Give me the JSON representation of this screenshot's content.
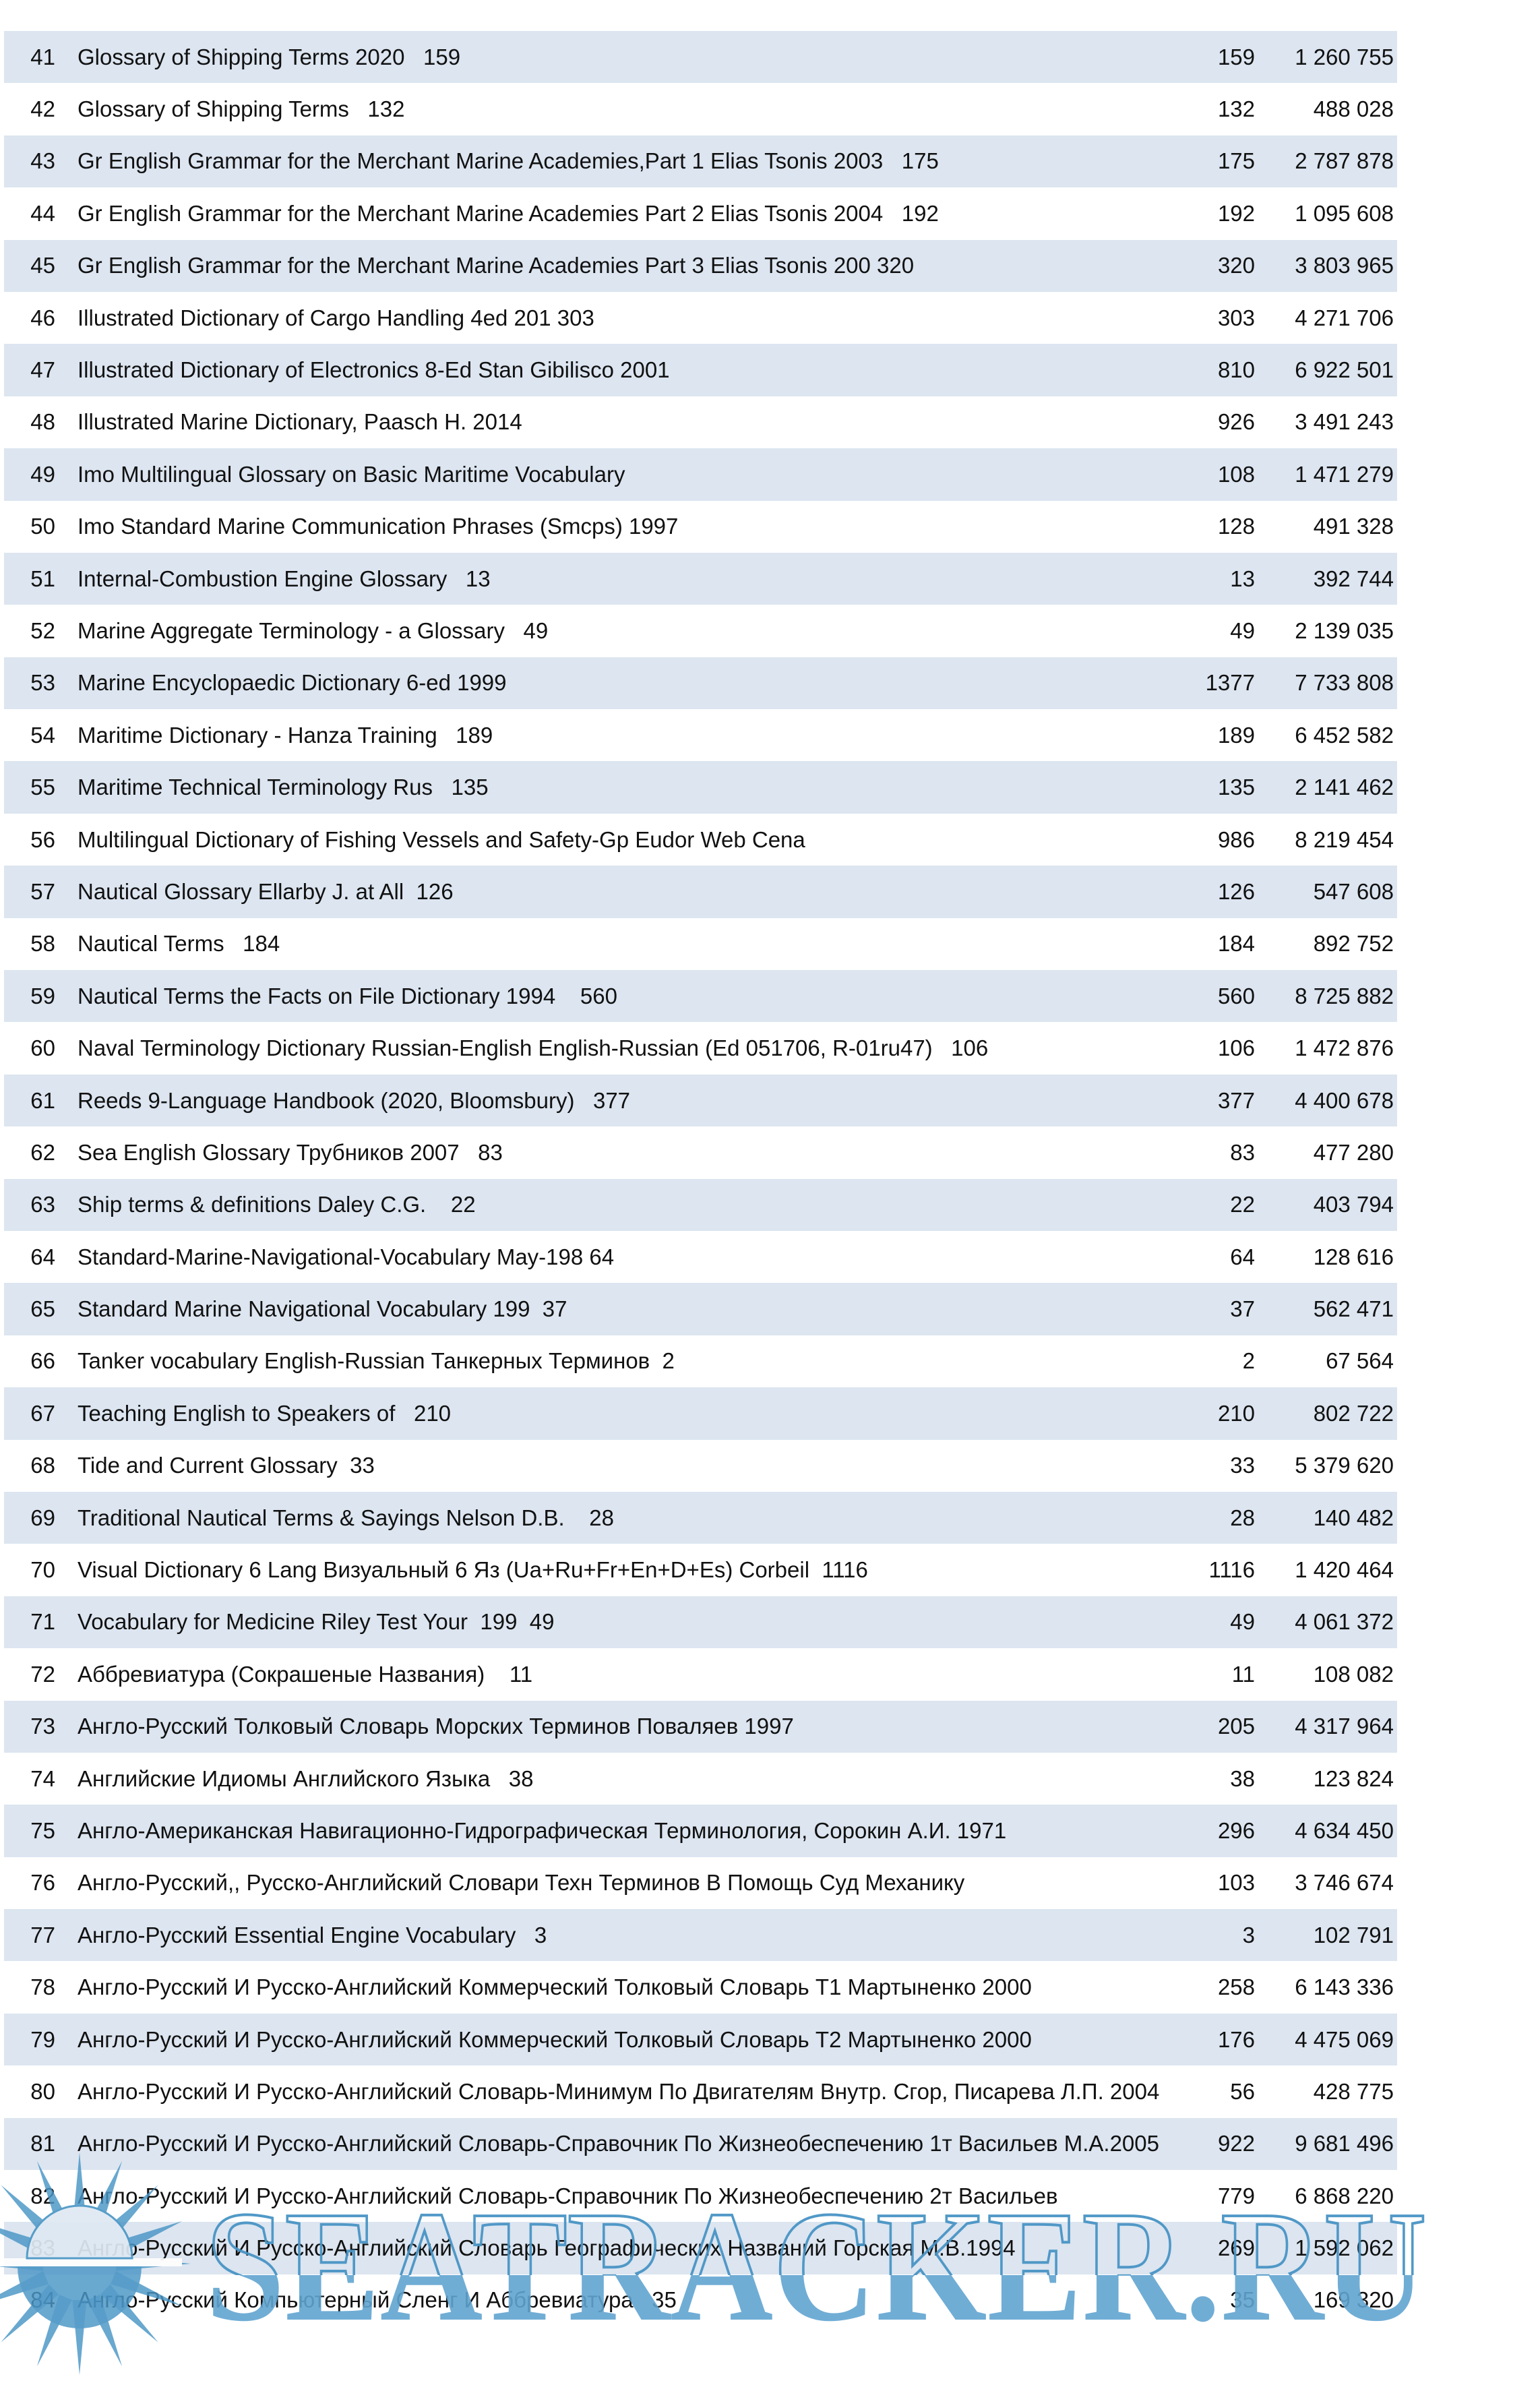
{
  "watermark": {
    "text": "SEATRACKER.RU"
  },
  "colors": {
    "row_band": "#dce5f0",
    "row_plain": "#ffffff",
    "text": "#111111",
    "watermark_fill": "#61a4d0",
    "watermark_stroke": "#4894c4",
    "logo_blue": "#4a96c5"
  },
  "icons": {
    "logo": "sunburst-sea-logo"
  },
  "table": {
    "rows": [
      {
        "num": "41",
        "title": "Glossary of Shipping Terms 2020   159",
        "pages": "159",
        "size": "1 260 755"
      },
      {
        "num": "42",
        "title": "Glossary of Shipping Terms   132",
        "pages": "132",
        "size": "488 028"
      },
      {
        "num": "43",
        "title": "Gr English Grammar for the Merchant Marine Academies,Part 1 Elias Tsonis 2003   175",
        "pages": "175",
        "size": "2 787 878"
      },
      {
        "num": "44",
        "title": "Gr English Grammar for the Merchant Marine Academies Part 2 Elias Tsonis 2004   192",
        "pages": "192",
        "size": "1 095 608"
      },
      {
        "num": "45",
        "title": "Gr English Grammar for the Merchant Marine Academies Part 3 Elias Tsonis 200 320",
        "pages": "320",
        "size": "3 803 965"
      },
      {
        "num": "46",
        "title": "Illustrated Dictionary of Cargo Handling 4ed 201 303",
        "pages": "303",
        "size": "4 271 706"
      },
      {
        "num": "47",
        "title": "Illustrated Dictionary of Electronics 8-Ed Stan Gibilisco 2001",
        "pages": "810",
        "size": "6 922 501"
      },
      {
        "num": "48",
        "title": "Illustrated Marine Dictionary, Paasch H. 2014",
        "pages": "926",
        "size": "3 491 243"
      },
      {
        "num": "49",
        "title": "Imo Multilingual Glossary on Basic Maritime Vocabulary",
        "pages": "108",
        "size": "1 471 279"
      },
      {
        "num": "50",
        "title": "Imo Standard Marine Communication Phrases (Smcps) 1997",
        "pages": "128",
        "size": "491 328"
      },
      {
        "num": "51",
        "title": "Internal-Combustion Engine Glossary   13",
        "pages": "13",
        "size": "392 744"
      },
      {
        "num": "52",
        "title": "Marine Aggregate Terminology - a Glossary   49",
        "pages": "49",
        "size": "2 139 035"
      },
      {
        "num": "53",
        "title": "Marine Encyclopaedic Dictionary 6-ed 1999",
        "pages": "1377",
        "size": "7 733 808"
      },
      {
        "num": "54",
        "title": "Maritime Dictionary - Hanza Training   189",
        "pages": "189",
        "size": "6 452 582"
      },
      {
        "num": "55",
        "title": "Maritime Technical Terminology Rus   135",
        "pages": "135",
        "size": "2 141 462"
      },
      {
        "num": "56",
        "title": "Multilingual Dictionary of Fishing Vessels and Safety-Gp Eudor Web Cena",
        "pages": "986",
        "size": "8 219 454"
      },
      {
        "num": "57",
        "title": "Nautical Glossary Ellarby J. at All  126",
        "pages": "126",
        "size": "547 608"
      },
      {
        "num": "58",
        "title": "Nautical Terms   184",
        "pages": "184",
        "size": "892 752"
      },
      {
        "num": "59",
        "title": "Nautical Terms the Facts on File Dictionary 1994    560",
        "pages": "560",
        "size": "8 725 882"
      },
      {
        "num": "60",
        "title": "Naval Terminology Dictionary Russian-English English-Russian (Ed 051706, R-01ru47)   106",
        "pages": "106",
        "size": "1 472 876"
      },
      {
        "num": "61",
        "title": "Reeds 9-Language Handbook (2020, Bloomsbury)   377",
        "pages": "377",
        "size": "4 400 678"
      },
      {
        "num": "62",
        "title": "Sea English Glossary Трубников 2007   83",
        "pages": "83",
        "size": "477 280"
      },
      {
        "num": "63",
        "title": "Ship terms & definitions Daley C.G.    22",
        "pages": "22",
        "size": "403 794"
      },
      {
        "num": "64",
        "title": "Standard-Marine-Navigational-Vocabulary May-198 64",
        "pages": "64",
        "size": "128 616"
      },
      {
        "num": "65",
        "title": "Standard Marine Navigational Vocabulary 199  37",
        "pages": "37",
        "size": "562 471"
      },
      {
        "num": "66",
        "title": "Tanker vocabulary English-Russian Танкерных Терминов  2",
        "pages": "2",
        "size": "67 564"
      },
      {
        "num": "67",
        "title": "Teaching English to Speakers of   210",
        "pages": "210",
        "size": "802 722"
      },
      {
        "num": "68",
        "title": "Tide and Current Glossary  33",
        "pages": "33",
        "size": "5 379 620"
      },
      {
        "num": "69",
        "title": "Traditional Nautical Terms & Sayings Nelson D.B.    28",
        "pages": "28",
        "size": "140 482"
      },
      {
        "num": "70",
        "title": "Visual Dictionary 6 Lang Визуальный 6 Яз (Ua+Ru+Fr+En+D+Es) Corbeil  1116",
        "pages": "1116",
        "size": "1 420 464"
      },
      {
        "num": "71",
        "title": "Vocabulary for Medicine Riley Test Your  199  49",
        "pages": "49",
        "size": "4 061 372"
      },
      {
        "num": "72",
        "title": "Аббревиатура (Сокрашеные Названия)    11",
        "pages": "11",
        "size": "108 082"
      },
      {
        "num": "73",
        "title": "Англо-Русский Толковый Словарь Морских Терминов Поваляев 1997",
        "pages": "205",
        "size": "4 317 964"
      },
      {
        "num": "74",
        "title": "Английские Идиомы Английского Языка   38",
        "pages": "38",
        "size": "123 824"
      },
      {
        "num": "75",
        "title": "Англо-Американская Навигационно-Гидрографическая Терминология, Сорокин А.И. 1971",
        "pages": "296",
        "size": "4 634 450"
      },
      {
        "num": "76",
        "title": "Англо-Русский,, Русско-Английский Словари Техн Терминов В Помощь Суд Механику",
        "pages": "103",
        "size": "3 746 674"
      },
      {
        "num": "77",
        "title": "Англо-Русский Essential Engine Vocabulary   3",
        "pages": "3",
        "size": "102 791"
      },
      {
        "num": "78",
        "title": "Англо-Русский И Русско-Английский Коммерческий Толковый Словарь Т1 Мартыненко 2000",
        "pages": "258",
        "size": "6 143 336"
      },
      {
        "num": "79",
        "title": "Англо-Русский И Русско-Английский Коммерческий Толковый Словарь Т2 Мартыненко 2000",
        "pages": "176",
        "size": "4 475 069"
      },
      {
        "num": "80",
        "title": "Англо-Русский И Русско-Английский Словарь-Минимум По Двигателям Внутр. Сгор, Писарева Л.П. 2004",
        "pages": "56",
        "size": "428 775"
      },
      {
        "num": "81",
        "title": "Англо-Русский И Русско-Английский Словарь-Справочник По Жизнеобеспечению 1т Васильев М.А.2005",
        "pages": "922",
        "size": "9 681 496"
      },
      {
        "num": "82",
        "title": "Англо-Русский И Русско-Английский Словарь-Справочник По Жизнеобеспечению 2т Васильев",
        "pages": "779",
        "size": "6 868 220"
      },
      {
        "num": "83",
        "title": "Англо-Русский И Русско-Английский Словарь Географических Названий Горская М.В.1994",
        "pages": "269",
        "size": "1 592 062"
      },
      {
        "num": "84",
        "title": "Англо-Русский Компьютерный Сленг И Аббревиатура   35",
        "pages": "35",
        "size": "169 320"
      }
    ]
  }
}
